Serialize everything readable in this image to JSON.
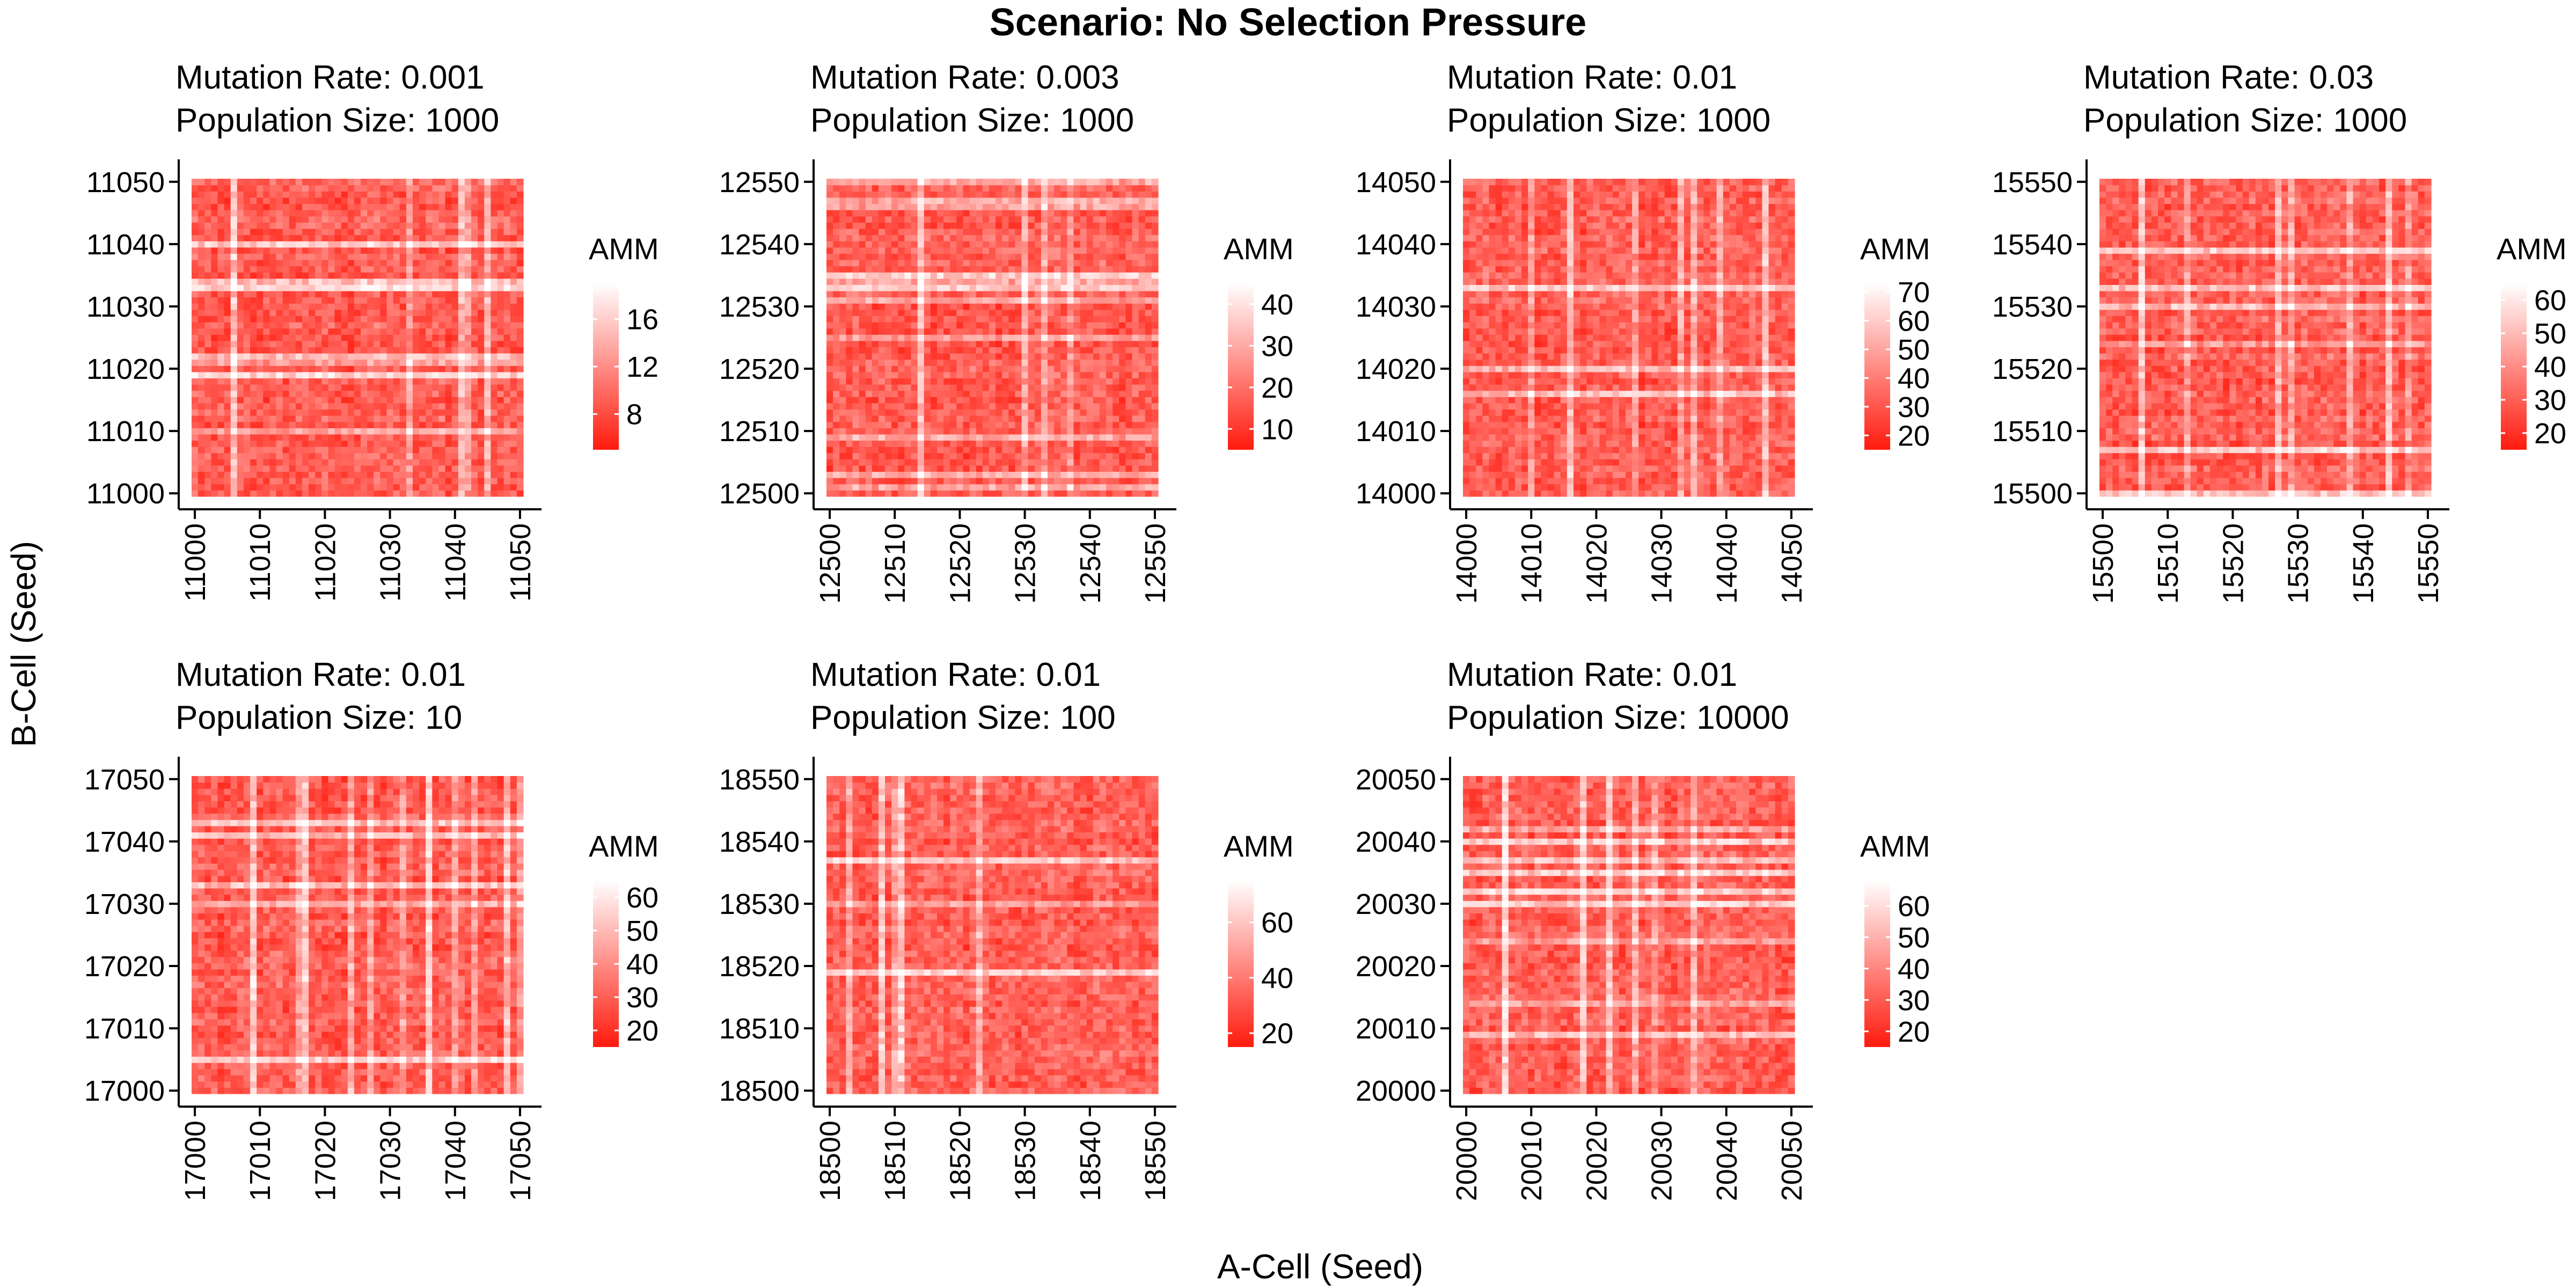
{
  "figure": {
    "title": "Scenario: No Selection Pressure",
    "xlabel": "A-Cell (Seed)",
    "ylabel": "B-Cell (Seed)",
    "colors": {
      "low": "#ff1a0d",
      "high": "#ffffff",
      "axis": "#000000"
    }
  },
  "chart_data": [
    {
      "type": "heatmap",
      "title_line1": "Mutation Rate: 0.001",
      "title_line2": "Population Size: 1000",
      "x_range": [
        11000,
        11050
      ],
      "y_range": [
        11000,
        11050
      ],
      "ticks": [
        11000,
        11010,
        11020,
        11030,
        11040,
        11050
      ],
      "legend_title": "AMM",
      "legend_range": [
        5,
        19
      ],
      "legend_ticks": [
        8,
        12,
        16
      ]
    },
    {
      "type": "heatmap",
      "title_line1": "Mutation Rate: 0.003",
      "title_line2": "Population Size: 1000",
      "x_range": [
        12500,
        12550
      ],
      "y_range": [
        12500,
        12550
      ],
      "ticks": [
        12500,
        12510,
        12520,
        12530,
        12540,
        12550
      ],
      "legend_title": "AMM",
      "legend_range": [
        5,
        45
      ],
      "legend_ticks": [
        10,
        20,
        30,
        40
      ]
    },
    {
      "type": "heatmap",
      "title_line1": "Mutation Rate: 0.01",
      "title_line2": "Population Size: 1000",
      "x_range": [
        14000,
        14050
      ],
      "y_range": [
        14000,
        14050
      ],
      "ticks": [
        14000,
        14010,
        14020,
        14030,
        14040,
        14050
      ],
      "legend_title": "AMM",
      "legend_range": [
        15,
        73
      ],
      "legend_ticks": [
        20,
        30,
        40,
        50,
        60,
        70
      ]
    },
    {
      "type": "heatmap",
      "title_line1": "Mutation Rate: 0.03",
      "title_line2": "Population Size: 1000",
      "x_range": [
        15500,
        15550
      ],
      "y_range": [
        15500,
        15550
      ],
      "ticks": [
        15500,
        15510,
        15520,
        15530,
        15540,
        15550
      ],
      "legend_title": "AMM",
      "legend_range": [
        15,
        65
      ],
      "legend_ticks": [
        20,
        30,
        40,
        50,
        60
      ]
    },
    {
      "type": "heatmap",
      "title_line1": "Mutation Rate: 0.01",
      "title_line2": "Population Size: 10",
      "x_range": [
        17000,
        17050
      ],
      "y_range": [
        17000,
        17050
      ],
      "ticks": [
        17000,
        17010,
        17020,
        17030,
        17040,
        17050
      ],
      "legend_title": "AMM",
      "legend_range": [
        15,
        65
      ],
      "legend_ticks": [
        20,
        30,
        40,
        50,
        60
      ]
    },
    {
      "type": "heatmap",
      "title_line1": "Mutation Rate: 0.01",
      "title_line2": "Population Size: 100",
      "x_range": [
        18500,
        18550
      ],
      "y_range": [
        18500,
        18550
      ],
      "ticks": [
        18500,
        18510,
        18520,
        18530,
        18540,
        18550
      ],
      "legend_title": "AMM",
      "legend_range": [
        15,
        75
      ],
      "legend_ticks": [
        20,
        40,
        60
      ]
    },
    {
      "type": "heatmap",
      "title_line1": "Mutation Rate: 0.01",
      "title_line2": "Population Size: 10000",
      "x_range": [
        20000,
        20050
      ],
      "y_range": [
        20000,
        20050
      ],
      "ticks": [
        20000,
        20010,
        20020,
        20030,
        20040,
        20050
      ],
      "legend_title": "AMM",
      "legend_range": [
        15,
        68
      ],
      "legend_ticks": [
        20,
        30,
        40,
        50,
        60
      ]
    }
  ]
}
